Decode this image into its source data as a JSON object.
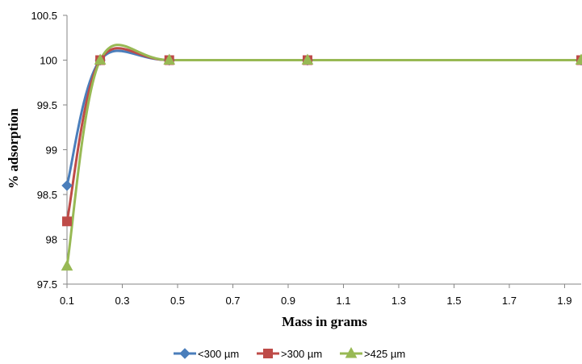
{
  "chart_data": {
    "type": "line",
    "title": "",
    "xlabel": "Mass in grams",
    "ylabel": "% adsorption",
    "xlim": [
      0.1,
      1.96
    ],
    "ylim": [
      97.5,
      100.5
    ],
    "x_ticks": [
      "0.1",
      "0.3",
      "0.5",
      "0.7",
      "0.9",
      "1.1",
      "1.3",
      "1.5",
      "1.7",
      "1.9"
    ],
    "y_ticks": [
      "97.5",
      "98",
      "98.5",
      "99",
      "99.5",
      "100",
      "100.5"
    ],
    "x": [
      0.1,
      0.22,
      0.47,
      0.97,
      1.96
    ],
    "smoothed": true,
    "grid": false,
    "legend_position": "bottom",
    "series": [
      {
        "name": "<300 µm",
        "values": [
          98.6,
          100,
          100,
          100,
          100
        ],
        "color": "#4a7ebb",
        "marker": "diamond"
      },
      {
        "name": ">300 µm",
        "values": [
          98.2,
          100,
          100,
          100,
          100
        ],
        "color": "#be4b48",
        "marker": "square"
      },
      {
        "name": ">425 µm",
        "values": [
          97.7,
          100,
          100,
          100,
          100
        ],
        "color": "#98b954",
        "marker": "triangle"
      }
    ]
  }
}
